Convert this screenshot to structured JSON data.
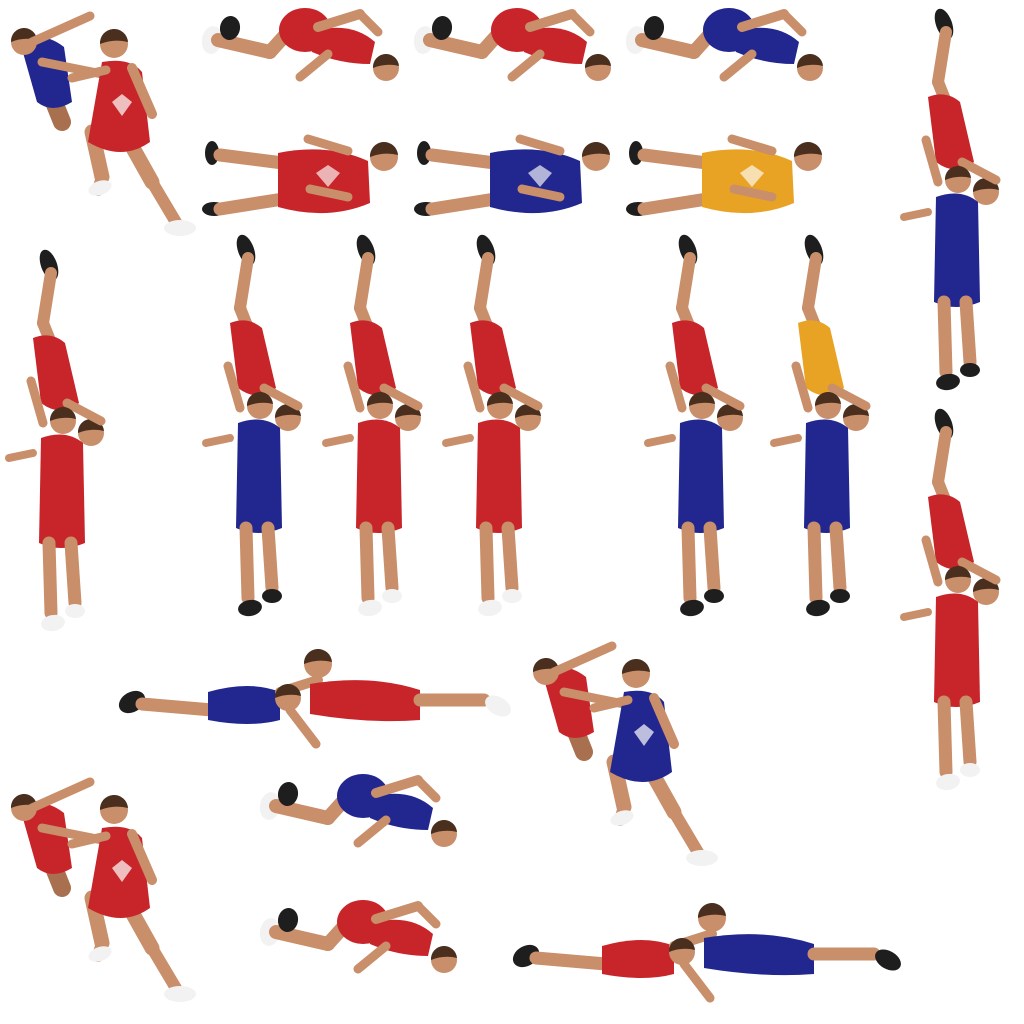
{
  "sheet": {
    "background": "#ffffff",
    "colors": {
      "skin": "#c98e6a",
      "skin_dark": "#a8704f",
      "hair": "#4a2f1e",
      "shoe_black": "#1e1e1e",
      "shoe_white": "#f2f2f2",
      "sock": "#f4f4f4"
    },
    "singlet_colors": {
      "red": "#c8252a",
      "blue": "#22268f",
      "orange": "#e9a324"
    },
    "sprites": [
      {
        "name": "sprite-pair-grapple-blue-red",
        "pose": "standing-pair",
        "singlet": "red",
        "opponent": "blue"
      },
      {
        "name": "sprite-tumble-red-1",
        "pose": "tumble",
        "singlet": "red"
      },
      {
        "name": "sprite-tumble-red-2",
        "pose": "tumble",
        "singlet": "red"
      },
      {
        "name": "sprite-tumble-blue-1",
        "pose": "tumble",
        "singlet": "blue"
      },
      {
        "name": "sprite-lying-red",
        "pose": "lying",
        "singlet": "red"
      },
      {
        "name": "sprite-lying-blue",
        "pose": "lying",
        "singlet": "blue"
      },
      {
        "name": "sprite-lying-orange",
        "pose": "lying",
        "singlet": "orange"
      },
      {
        "name": "sprite-lift-red-by-blue-right",
        "pose": "lift",
        "singlet": "blue",
        "opponent": "red"
      },
      {
        "name": "sprite-lift-red-by-red-left",
        "pose": "lift",
        "singlet": "red",
        "opponent": "red"
      },
      {
        "name": "sprite-lift-red-by-blue-1",
        "pose": "lift",
        "singlet": "blue",
        "opponent": "red"
      },
      {
        "name": "sprite-lift-red-by-red-1",
        "pose": "lift",
        "singlet": "red",
        "opponent": "red"
      },
      {
        "name": "sprite-lift-red-by-red-2",
        "pose": "lift",
        "singlet": "red",
        "opponent": "red"
      },
      {
        "name": "sprite-lift-red-by-blue-2",
        "pose": "lift",
        "singlet": "blue",
        "opponent": "red"
      },
      {
        "name": "sprite-lift-orange-by-blue",
        "pose": "lift",
        "singlet": "blue",
        "opponent": "orange"
      },
      {
        "name": "sprite-lift-red-by-red-right",
        "pose": "lift",
        "singlet": "red",
        "opponent": "red"
      },
      {
        "name": "sprite-prone-pair-blue-red",
        "pose": "prone-pair",
        "singlet": "blue",
        "opponent": "red"
      },
      {
        "name": "sprite-pair-grapple-red-blue",
        "pose": "standing-pair",
        "singlet": "blue",
        "opponent": "red"
      },
      {
        "name": "sprite-pair-grapple-red-red",
        "pose": "standing-pair",
        "singlet": "red",
        "opponent": "red"
      },
      {
        "name": "sprite-tumble-blue-2",
        "pose": "tumble",
        "singlet": "blue"
      },
      {
        "name": "sprite-tumble-red-3",
        "pose": "tumble",
        "singlet": "red"
      },
      {
        "name": "sprite-prone-pair-red-blue",
        "pose": "prone-pair",
        "singlet": "red",
        "opponent": "blue"
      }
    ]
  }
}
